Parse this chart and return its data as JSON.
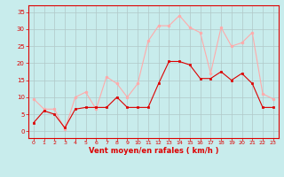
{
  "x": [
    0,
    1,
    2,
    3,
    4,
    5,
    6,
    7,
    8,
    9,
    10,
    11,
    12,
    13,
    14,
    15,
    16,
    17,
    18,
    19,
    20,
    21,
    22,
    23
  ],
  "vent_moyen": [
    2.5,
    6,
    5,
    1,
    6.5,
    7,
    7,
    7,
    10,
    7,
    7,
    7,
    14,
    20.5,
    20.5,
    19.5,
    15.5,
    15.5,
    17.5,
    15,
    17,
    14,
    7,
    7
  ],
  "vent_rafales": [
    9.5,
    6.5,
    6.5,
    0.5,
    10,
    11.5,
    6.5,
    16,
    14,
    10,
    14,
    26.5,
    31,
    31,
    34,
    30.5,
    29,
    17,
    30.5,
    25,
    26,
    29,
    11,
    9.5
  ],
  "color_moyen": "#dd0000",
  "color_rafales": "#ffaaaa",
  "bg_color": "#c8ecec",
  "grid_color": "#b0c8c8",
  "xlabel": "Vent moyen/en rafales ( km/h )",
  "xlabel_color": "#dd0000",
  "tick_color": "#dd0000",
  "spine_color": "#dd0000",
  "ylim": [
    -2,
    37
  ],
  "xlim": [
    -0.5,
    23.5
  ],
  "yticks": [
    0,
    5,
    10,
    15,
    20,
    25,
    30,
    35
  ],
  "xticks": [
    0,
    1,
    2,
    3,
    4,
    5,
    6,
    7,
    8,
    9,
    10,
    11,
    12,
    13,
    14,
    15,
    16,
    17,
    18,
    19,
    20,
    21,
    22,
    23
  ]
}
